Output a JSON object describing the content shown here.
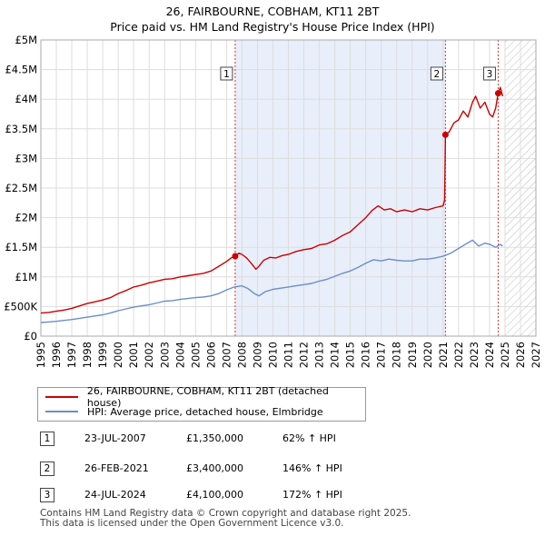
{
  "chart_data": {
    "type": "line",
    "title": "26, FAIRBOURNE, COBHAM, KT11 2BT",
    "subtitle": "Price paid vs. HM Land Registry's House Price Index (HPI)",
    "xlim": [
      1995,
      2027
    ],
    "ylim": [
      0,
      5000000
    ],
    "x_ticks": [
      "1995",
      "1996",
      "1997",
      "1998",
      "1999",
      "2000",
      "2001",
      "2002",
      "2003",
      "2004",
      "2005",
      "2006",
      "2007",
      "2008",
      "2009",
      "2010",
      "2011",
      "2012",
      "2013",
      "2014",
      "2015",
      "2016",
      "2017",
      "2018",
      "2019",
      "2020",
      "2021",
      "2022",
      "2023",
      "2024",
      "2025",
      "2026",
      "2027"
    ],
    "y_ticks": [
      {
        "value": 0,
        "label": "£0"
      },
      {
        "value": 500000,
        "label": "£500K"
      },
      {
        "value": 1000000,
        "label": "£1M"
      },
      {
        "value": 1500000,
        "label": "£1.5M"
      },
      {
        "value": 2000000,
        "label": "£2M"
      },
      {
        "value": 2500000,
        "label": "£2.5M"
      },
      {
        "value": 3000000,
        "label": "£3M"
      },
      {
        "value": 3500000,
        "label": "£3.5M"
      },
      {
        "value": 4000000,
        "label": "£4M"
      },
      {
        "value": 4500000,
        "label": "£4.5M"
      },
      {
        "value": 5000000,
        "label": "£5M"
      }
    ],
    "grid": true,
    "legend_position": "below",
    "shaded_region": {
      "from": 2007.56,
      "to": 2021.15,
      "color": "#e8eefa"
    },
    "future_region": {
      "from": 2025.0,
      "to": 2027,
      "pattern": "hatched"
    },
    "series": [
      {
        "name": "26, FAIRBOURNE, COBHAM, KT11 2BT (detached house)",
        "color": "#cc0000",
        "x": [
          1995.0,
          1995.5,
          1996.0,
          1996.5,
          1997.0,
          1997.5,
          1998.0,
          1998.5,
          1999.0,
          1999.5,
          2000.0,
          2000.5,
          2001.0,
          2001.5,
          2002.0,
          2002.5,
          2003.0,
          2003.5,
          2004.0,
          2004.5,
          2005.0,
          2005.5,
          2006.0,
          2006.5,
          2007.0,
          2007.3,
          2007.56,
          2007.8,
          2008.0,
          2008.3,
          2008.6,
          2008.9,
          2009.1,
          2009.4,
          2009.8,
          2010.2,
          2010.6,
          2011.0,
          2011.5,
          2012.0,
          2012.5,
          2013.0,
          2013.5,
          2014.0,
          2014.5,
          2015.0,
          2015.5,
          2016.0,
          2016.4,
          2016.8,
          2017.2,
          2017.6,
          2018.0,
          2018.5,
          2019.0,
          2019.5,
          2020.0,
          2020.5,
          2021.0,
          2021.1,
          2021.15,
          2021.4,
          2021.7,
          2022.0,
          2022.3,
          2022.6,
          2022.9,
          2023.1,
          2023.4,
          2023.7,
          2024.0,
          2024.2,
          2024.4,
          2024.56,
          2024.7,
          2024.85
        ],
        "y": [
          390000,
          400000,
          420000,
          440000,
          470000,
          510000,
          550000,
          580000,
          610000,
          650000,
          720000,
          770000,
          830000,
          860000,
          900000,
          930000,
          960000,
          970000,
          1000000,
          1020000,
          1040000,
          1060000,
          1100000,
          1180000,
          1260000,
          1320000,
          1350000,
          1400000,
          1380000,
          1320000,
          1230000,
          1130000,
          1180000,
          1280000,
          1330000,
          1320000,
          1360000,
          1380000,
          1430000,
          1460000,
          1480000,
          1540000,
          1560000,
          1620000,
          1700000,
          1760000,
          1880000,
          2000000,
          2120000,
          2200000,
          2130000,
          2150000,
          2100000,
          2130000,
          2100000,
          2150000,
          2130000,
          2170000,
          2200000,
          2300000,
          3400000,
          3450000,
          3600000,
          3650000,
          3800000,
          3700000,
          3950000,
          4050000,
          3850000,
          3950000,
          3750000,
          3700000,
          3850000,
          4100000,
          4200000,
          4050000
        ]
      },
      {
        "name": "HPI: Average price, detached house, Elmbridge",
        "color": "#6a8fc8",
        "x": [
          1995.0,
          1995.5,
          1996.0,
          1996.5,
          1997.0,
          1997.5,
          1998.0,
          1998.5,
          1999.0,
          1999.5,
          2000.0,
          2000.5,
          2001.0,
          2001.5,
          2002.0,
          2002.5,
          2003.0,
          2003.5,
          2004.0,
          2004.5,
          2005.0,
          2005.5,
          2006.0,
          2006.5,
          2007.0,
          2007.5,
          2008.0,
          2008.4,
          2008.8,
          2009.1,
          2009.5,
          2010.0,
          2010.5,
          2011.0,
          2011.5,
          2012.0,
          2012.5,
          2013.0,
          2013.5,
          2014.0,
          2014.5,
          2015.0,
          2015.5,
          2016.0,
          2016.5,
          2017.0,
          2017.5,
          2018.0,
          2018.5,
          2019.0,
          2019.5,
          2020.0,
          2020.5,
          2021.0,
          2021.5,
          2022.0,
          2022.5,
          2022.9,
          2023.3,
          2023.7,
          2024.0,
          2024.4,
          2024.7,
          2024.85
        ],
        "y": [
          230000,
          240000,
          250000,
          265000,
          280000,
          300000,
          320000,
          340000,
          360000,
          390000,
          430000,
          460000,
          490000,
          510000,
          530000,
          560000,
          590000,
          600000,
          620000,
          635000,
          650000,
          660000,
          680000,
          720000,
          780000,
          830000,
          850000,
          800000,
          720000,
          680000,
          750000,
          790000,
          810000,
          830000,
          850000,
          870000,
          890000,
          930000,
          960000,
          1010000,
          1060000,
          1100000,
          1160000,
          1230000,
          1290000,
          1270000,
          1300000,
          1280000,
          1270000,
          1270000,
          1300000,
          1300000,
          1320000,
          1350000,
          1400000,
          1480000,
          1560000,
          1620000,
          1520000,
          1570000,
          1550000,
          1500000,
          1550000,
          1520000
        ]
      }
    ],
    "annotations": [
      {
        "label": "1",
        "x": 2007.56,
        "y": 1350000
      },
      {
        "label": "2",
        "x": 2021.15,
        "y": 3400000
      },
      {
        "label": "3",
        "x": 2024.56,
        "y": 4100000
      }
    ]
  },
  "legend": {
    "items": [
      {
        "label": "26, FAIRBOURNE, COBHAM, KT11 2BT (detached house)",
        "color": "#cc0000"
      },
      {
        "label": "HPI: Average price, detached house, Elmbridge",
        "color": "#6a8fc8"
      }
    ]
  },
  "transactions": [
    {
      "num": "1",
      "date": "23-JUL-2007",
      "price": "£1,350,000",
      "hpi": "62% ↑ HPI"
    },
    {
      "num": "2",
      "date": "26-FEB-2021",
      "price": "£3,400,000",
      "hpi": "146% ↑ HPI"
    },
    {
      "num": "3",
      "date": "24-JUL-2024",
      "price": "£4,100,000",
      "hpi": "172% ↑ HPI"
    }
  ],
  "footer": {
    "line1": "Contains HM Land Registry data © Crown copyright and database right 2025.",
    "line2": "This data is licensed under the Open Government Licence v3.0."
  }
}
